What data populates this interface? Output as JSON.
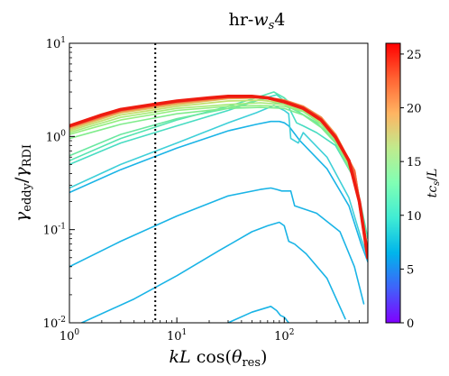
{
  "chart_data": {
    "type": "line",
    "title": "hr-w_s4",
    "xlabel": "kL cos(θ_res)",
    "ylabel": "γ_eddy/γ_RDI",
    "xscale": "log",
    "yscale": "log",
    "xlim": [
      1,
      600
    ],
    "ylim": [
      0.01,
      10
    ],
    "x_ticks": [
      {
        "value": 1,
        "label": "10^0"
      },
      {
        "value": 10,
        "label": "10^1"
      },
      {
        "value": 100,
        "label": "10^2"
      }
    ],
    "y_ticks": [
      {
        "value": 0.01,
        "label": "10^-2"
      },
      {
        "value": 0.1,
        "label": "10^-1"
      },
      {
        "value": 1,
        "label": "10^0"
      },
      {
        "value": 10,
        "label": "10^1"
      }
    ],
    "vline": {
      "x": 6.3,
      "style": "dotted",
      "color": "#000000"
    },
    "colorbar": {
      "label": "tc_s/L",
      "range": [
        0,
        26
      ],
      "ticks": [
        0,
        5,
        10,
        15,
        20,
        25
      ],
      "colormap": "rainbow"
    },
    "series": [
      {
        "t": 5,
        "color": "#1ab4e6",
        "width": 1.6,
        "points": [
          [
            1.3,
            0.01
          ],
          [
            4,
            0.018
          ],
          [
            10,
            0.032
          ],
          [
            25,
            0.06
          ],
          [
            50,
            0.095
          ],
          [
            70,
            0.11
          ],
          [
            90,
            0.12
          ],
          [
            100,
            0.11
          ],
          [
            110,
            0.075
          ],
          [
            125,
            0.07
          ],
          [
            160,
            0.055
          ],
          [
            250,
            0.03
          ],
          [
            370,
            0.011
          ]
        ]
      },
      {
        "t": 5.5,
        "color": "#1ab4e6",
        "width": 1.6,
        "points": [
          [
            30,
            0.01
          ],
          [
            50,
            0.013
          ],
          [
            75,
            0.015
          ],
          [
            85,
            0.0135
          ],
          [
            92,
            0.012
          ],
          [
            100,
            0.0115
          ],
          [
            110,
            0.01
          ]
        ]
      },
      {
        "t": 6,
        "color": "#1ab4e6",
        "width": 1.6,
        "points": [
          [
            1,
            0.04
          ],
          [
            3,
            0.075
          ],
          [
            10,
            0.14
          ],
          [
            30,
            0.23
          ],
          [
            60,
            0.27
          ],
          [
            75,
            0.28
          ],
          [
            85,
            0.27
          ],
          [
            95,
            0.26
          ],
          [
            100,
            0.26
          ],
          [
            115,
            0.26
          ],
          [
            125,
            0.18
          ],
          [
            200,
            0.15
          ],
          [
            330,
            0.095
          ],
          [
            450,
            0.04
          ],
          [
            550,
            0.016
          ]
        ]
      },
      {
        "t": 6.5,
        "color": "#1ab4e6",
        "width": 1.6,
        "points": [
          [
            1,
            0.25
          ],
          [
            3,
            0.44
          ],
          [
            10,
            0.75
          ],
          [
            30,
            1.15
          ],
          [
            55,
            1.35
          ],
          [
            75,
            1.45
          ],
          [
            90,
            1.45
          ],
          [
            100,
            1.4
          ],
          [
            110,
            1.3
          ],
          [
            140,
            0.9
          ],
          [
            250,
            0.45
          ],
          [
            400,
            0.18
          ],
          [
            520,
            0.07
          ],
          [
            600,
            0.045
          ]
        ]
      },
      {
        "t": 7,
        "color": "#3fd0d8",
        "width": 1.6,
        "points": [
          [
            1,
            0.28
          ],
          [
            3,
            0.5
          ],
          [
            10,
            0.85
          ],
          [
            30,
            1.4
          ],
          [
            55,
            1.8
          ],
          [
            80,
            2.15
          ],
          [
            100,
            1.9
          ],
          [
            110,
            1.75
          ],
          [
            115,
            0.95
          ],
          [
            135,
            0.85
          ],
          [
            150,
            1.1
          ],
          [
            250,
            0.6
          ],
          [
            400,
            0.22
          ],
          [
            520,
            0.08
          ],
          [
            600,
            0.05
          ]
        ]
      },
      {
        "t": 8.5,
        "color": "#48dcc2",
        "width": 1.6,
        "points": [
          [
            1,
            0.5
          ],
          [
            3,
            0.85
          ],
          [
            10,
            1.3
          ],
          [
            30,
            1.9
          ],
          [
            60,
            2.5
          ],
          [
            85,
            2.8
          ],
          [
            105,
            2.3
          ],
          [
            130,
            1.4
          ],
          [
            150,
            1.3
          ],
          [
            200,
            1.1
          ],
          [
            300,
            0.8
          ],
          [
            450,
            0.35
          ],
          [
            520,
            0.15
          ],
          [
            600,
            0.06
          ]
        ]
      },
      {
        "t": 9.5,
        "color": "#55e4b0",
        "width": 1.6,
        "points": [
          [
            1,
            0.55
          ],
          [
            3,
            0.95
          ],
          [
            10,
            1.5
          ],
          [
            30,
            2.1
          ],
          [
            60,
            2.7
          ],
          [
            80,
            3.0
          ],
          [
            100,
            2.6
          ],
          [
            140,
            1.8
          ],
          [
            200,
            1.4
          ],
          [
            300,
            0.9
          ],
          [
            450,
            0.4
          ],
          [
            600,
            0.08
          ]
        ]
      },
      {
        "t": 10.5,
        "color": "#6ae8a0",
        "width": 1.6,
        "points": [
          [
            1,
            0.62
          ],
          [
            3,
            1.05
          ],
          [
            10,
            1.55
          ],
          [
            30,
            2.0
          ],
          [
            60,
            2.5
          ],
          [
            100,
            2.2
          ],
          [
            140,
            1.8
          ],
          [
            200,
            1.4
          ],
          [
            300,
            0.9
          ],
          [
            450,
            0.35
          ],
          [
            600,
            0.06
          ]
        ]
      },
      {
        "t": 12,
        "color": "#80ec8c",
        "width": 1.6,
        "points": [
          [
            1,
            0.95
          ],
          [
            3,
            1.35
          ],
          [
            10,
            1.75
          ],
          [
            30,
            2.0
          ],
          [
            60,
            2.05
          ],
          [
            100,
            2.0
          ],
          [
            150,
            1.7
          ],
          [
            220,
            1.25
          ],
          [
            300,
            0.85
          ],
          [
            450,
            0.35
          ],
          [
            600,
            0.06
          ]
        ]
      },
      {
        "t": 13,
        "color": "#95ee80",
        "width": 1.6,
        "points": [
          [
            1,
            1.05
          ],
          [
            3,
            1.5
          ],
          [
            10,
            1.9
          ],
          [
            30,
            2.1
          ],
          [
            60,
            2.15
          ],
          [
            100,
            2.1
          ],
          [
            150,
            1.85
          ],
          [
            220,
            1.35
          ],
          [
            300,
            0.9
          ],
          [
            450,
            0.38
          ],
          [
            600,
            0.06
          ]
        ]
      },
      {
        "t": 14,
        "color": "#a8ea78",
        "width": 1.6,
        "points": [
          [
            1,
            1.1
          ],
          [
            3,
            1.6
          ],
          [
            10,
            2.0
          ],
          [
            30,
            2.2
          ],
          [
            60,
            2.3
          ],
          [
            100,
            2.2
          ],
          [
            150,
            1.9
          ],
          [
            220,
            1.4
          ],
          [
            300,
            0.95
          ],
          [
            450,
            0.4
          ],
          [
            600,
            0.06
          ]
        ]
      },
      {
        "t": 15,
        "color": "#c4e070",
        "width": 1.8,
        "points": [
          [
            1,
            1.15
          ],
          [
            3,
            1.7
          ],
          [
            10,
            2.1
          ],
          [
            30,
            2.4
          ],
          [
            60,
            2.45
          ],
          [
            100,
            2.3
          ],
          [
            150,
            2.0
          ],
          [
            220,
            1.5
          ],
          [
            300,
            1.0
          ],
          [
            450,
            0.42
          ],
          [
            600,
            0.06
          ]
        ]
      },
      {
        "t": 17,
        "color": "#e0c060",
        "width": 2.0,
        "points": [
          [
            1,
            1.2
          ],
          [
            3,
            1.8
          ],
          [
            10,
            2.2
          ],
          [
            30,
            2.55
          ],
          [
            60,
            2.6
          ],
          [
            100,
            2.4
          ],
          [
            150,
            2.05
          ],
          [
            220,
            1.55
          ],
          [
            300,
            1.05
          ],
          [
            450,
            0.43
          ],
          [
            600,
            0.06
          ]
        ]
      },
      {
        "t": 19,
        "color": "#f09a50",
        "width": 2.4,
        "points": [
          [
            1,
            1.25
          ],
          [
            3,
            1.85
          ],
          [
            10,
            2.3
          ],
          [
            30,
            2.6
          ],
          [
            60,
            2.65
          ],
          [
            100,
            2.45
          ],
          [
            150,
            2.1
          ],
          [
            220,
            1.6
          ],
          [
            300,
            1.05
          ],
          [
            450,
            0.43
          ],
          [
            600,
            0.055
          ]
        ]
      },
      {
        "t": 22,
        "color": "#f26840",
        "width": 2.8,
        "points": [
          [
            1,
            1.28
          ],
          [
            3,
            1.9
          ],
          [
            10,
            2.35
          ],
          [
            30,
            2.65
          ],
          [
            60,
            2.65
          ],
          [
            100,
            2.4
          ],
          [
            150,
            2.05
          ],
          [
            220,
            1.55
          ],
          [
            300,
            1.0
          ],
          [
            450,
            0.42
          ],
          [
            600,
            0.05
          ]
        ]
      },
      {
        "t": 26,
        "color": "#ee1c10",
        "width": 3.6,
        "points": [
          [
            1,
            1.3
          ],
          [
            2,
            1.7
          ],
          [
            3,
            1.95
          ],
          [
            6,
            2.2
          ],
          [
            10,
            2.4
          ],
          [
            20,
            2.6
          ],
          [
            30,
            2.7
          ],
          [
            50,
            2.7
          ],
          [
            70,
            2.6
          ],
          [
            100,
            2.35
          ],
          [
            150,
            2.0
          ],
          [
            220,
            1.5
          ],
          [
            300,
            0.98
          ],
          [
            400,
            0.55
          ],
          [
            500,
            0.2
          ],
          [
            600,
            0.05
          ]
        ]
      }
    ]
  }
}
